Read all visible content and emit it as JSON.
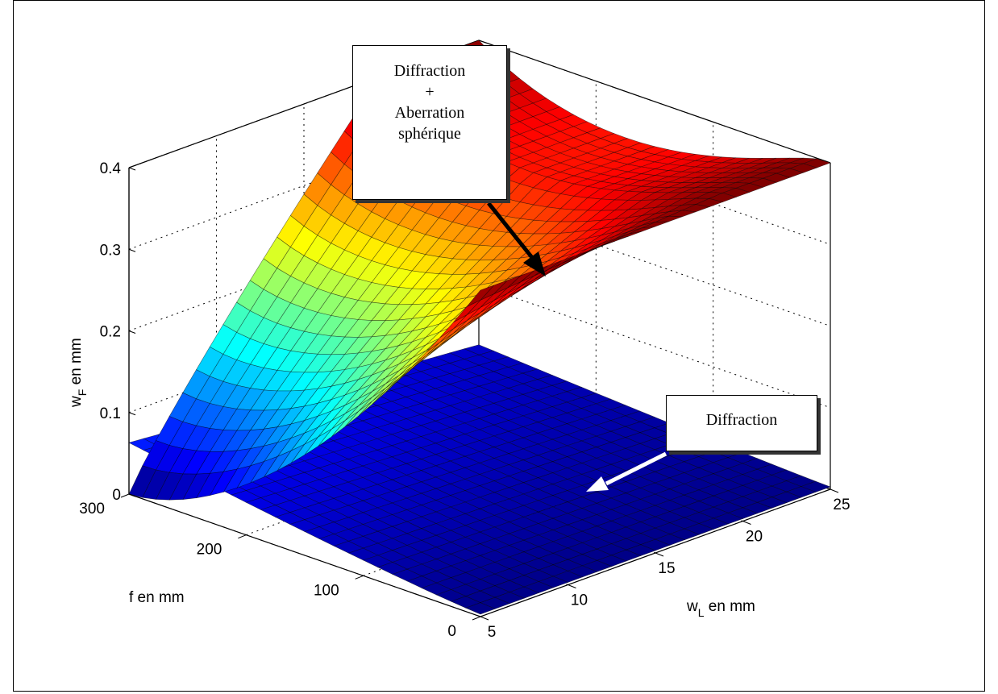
{
  "chart_data": {
    "type": "surface",
    "zlabel": "w_F en mm",
    "ylabel": "f en mm",
    "xlabel": "w_L en mm",
    "x_ticks": [
      5,
      10,
      15,
      20,
      25
    ],
    "y_ticks": [
      0,
      100,
      200,
      300
    ],
    "z_ticks": [
      "0",
      "0.1",
      "0.2",
      "0.3",
      "0.4"
    ],
    "xlim": [
      5,
      25
    ],
    "ylim": [
      0,
      300
    ],
    "zlim": [
      0,
      0.4
    ],
    "grid": true,
    "colormap": "jet",
    "surfaces": [
      {
        "name": "Diffraction + Aberration sphérique",
        "model": "diffraction + spherical aberration"
      },
      {
        "name": "Diffraction",
        "model": "diffraction only"
      }
    ],
    "annotations": [
      {
        "lines": [
          "Diffraction",
          "+",
          "Aberration",
          "sphérique"
        ],
        "arrow_color": "#000000"
      },
      {
        "lines": [
          "Diffraction"
        ],
        "arrow_color": "#ffffff"
      }
    ]
  }
}
